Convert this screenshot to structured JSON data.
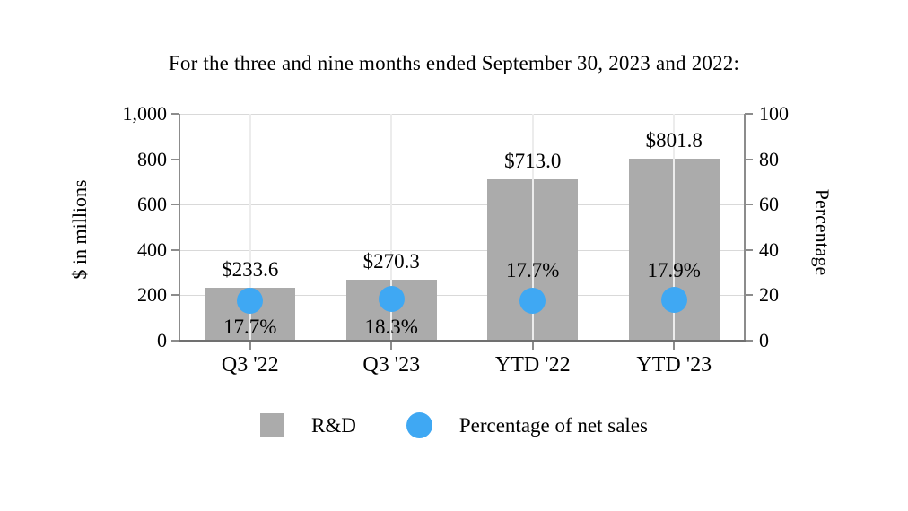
{
  "title": "For the three and nine months ended September 30, 2023 and 2022:",
  "chart_data": {
    "type": "bar",
    "subtype": "bar-scatter-combo",
    "title": "For the three and nine months ended September 30, 2023 and 2022:",
    "categories": [
      "Q3 '22",
      "Q3 '23",
      "YTD '22",
      "YTD '23"
    ],
    "series": [
      {
        "name": "R&D",
        "type": "bar",
        "axis": "left",
        "values": [
          233.6,
          270.3,
          713.0,
          801.8
        ],
        "labels": [
          "$233.6",
          "$270.3",
          "$713.0",
          "$801.8"
        ],
        "color": "#ababab"
      },
      {
        "name": "Percentage of net sales",
        "type": "scatter",
        "axis": "right",
        "values": [
          17.7,
          18.3,
          17.7,
          17.9
        ],
        "labels": [
          "17.7%",
          "18.3%",
          "17.7%",
          "17.9%"
        ],
        "label_positions": [
          "below-marker",
          "below-marker",
          "above-marker",
          "above-marker"
        ],
        "color": "#3fa8f3"
      }
    ],
    "xlabel": "",
    "ylabel_left": "$ in millions",
    "ylabel_right": "Percentage",
    "left_axis": {
      "min": 0,
      "max": 1000,
      "tick_labels": [
        "0",
        "200",
        "400",
        "600",
        "800",
        "1,000"
      ]
    },
    "right_axis": {
      "min": 0,
      "max": 100,
      "tick_labels": [
        "0",
        "20",
        "40",
        "60",
        "80",
        "100"
      ]
    },
    "grid": true,
    "gridline_color": "#d9d9d9",
    "axis_color": "#8c8c8c",
    "legend_position": "bottom"
  },
  "legend": {
    "items": [
      {
        "label": "R&D",
        "marker": "gray-square"
      },
      {
        "label": "Percentage of net sales",
        "marker": "blue-circle"
      }
    ]
  }
}
